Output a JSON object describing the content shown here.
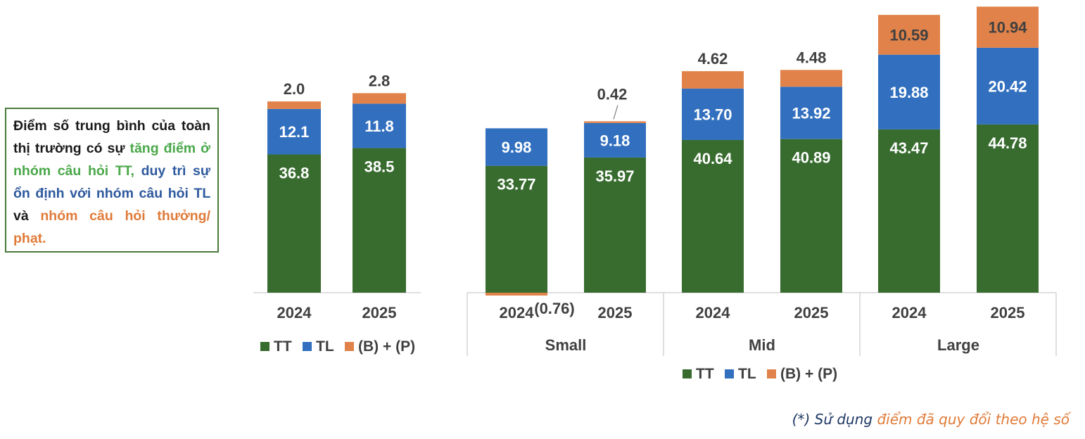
{
  "note": {
    "plain1": "Điểm số trung bình của toàn thị trường có sự ",
    "green": "tăng điểm ở nhóm câu hỏi TT,",
    "blue": "duy trì sự ổn định với nhóm câu hỏi TL",
    "plain2": " và ",
    "orange": "nhóm câu hỏi thưởng/ phạt."
  },
  "footnote": {
    "prefix": "(*) Sử dụng ",
    "highlight": "điểm đã quy đổi theo hệ số"
  },
  "colors": {
    "TT": "#386c2f",
    "TL": "#3270bf",
    "BP": "#e0824a",
    "axis": "#bfbfbf",
    "label": "#404040"
  },
  "chart_data": [
    {
      "type": "bar",
      "stacked": true,
      "categories": [
        "2024",
        "2025"
      ],
      "series": [
        {
          "name": "TT",
          "values": [
            36.8,
            38.5
          ],
          "labels": [
            "36.8",
            "38.5"
          ]
        },
        {
          "name": "TL",
          "values": [
            12.1,
            11.8
          ],
          "labels": [
            "12.1",
            "11.8"
          ]
        },
        {
          "name": "(B) + (P)",
          "values": [
            2.0,
            2.8
          ],
          "labels": [
            "2.0",
            "2.8"
          ]
        }
      ],
      "legend": [
        "TT",
        "TL",
        "(B) + (P)"
      ]
    },
    {
      "type": "bar",
      "stacked": true,
      "groups": [
        "Small",
        "Mid",
        "Large"
      ],
      "categories": [
        "2024",
        "2025",
        "2024",
        "2025",
        "2024",
        "2025"
      ],
      "series": [
        {
          "name": "TT",
          "values": [
            33.77,
            35.97,
            40.64,
            40.89,
            43.47,
            44.78
          ],
          "labels": [
            "33.77",
            "35.97",
            "40.64",
            "40.89",
            "43.47",
            "44.78"
          ]
        },
        {
          "name": "TL",
          "values": [
            9.98,
            9.18,
            13.7,
            13.92,
            19.88,
            20.42
          ],
          "labels": [
            "9.98",
            "9.18",
            "13.70",
            "13.92",
            "19.88",
            "20.42"
          ]
        },
        {
          "name": "(B) + (P)",
          "values": [
            -0.76,
            0.42,
            4.62,
            4.48,
            10.59,
            10.94
          ],
          "labels": [
            "(0.76)",
            "0.42",
            "4.62",
            "4.48",
            "10.59",
            "10.94"
          ]
        }
      ],
      "legend": [
        "TT",
        "TL",
        "(B) + (P)"
      ]
    }
  ]
}
